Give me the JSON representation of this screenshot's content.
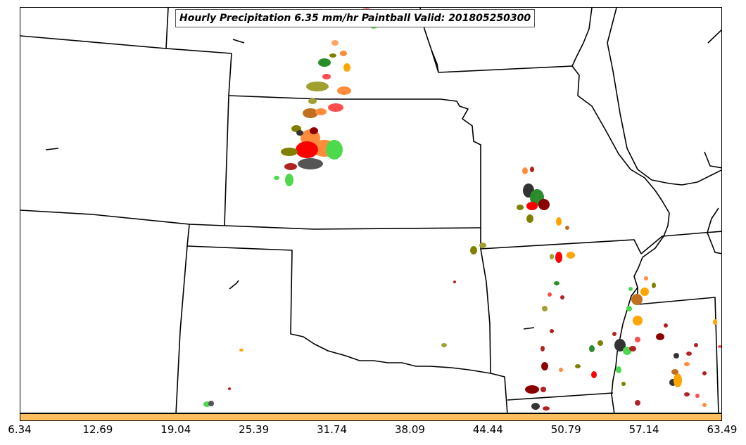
{
  "title": "Hourly Precipitation 6.35 mm/hr Paintball Valid: 201805250300",
  "colorbar": {
    "color": "#ffbf5e",
    "ticks": [
      "6.34",
      "12.69",
      "19.04",
      "25.39",
      "31.74",
      "38.09",
      "44.44",
      "50.79",
      "57.14",
      "63.49"
    ]
  },
  "colors": {
    "borders": "#000000",
    "paint": [
      "#ff0000",
      "#ff4c4c",
      "#ff8c3a",
      "#ffa500",
      "#2a8c2a",
      "#4cd94c",
      "#808000",
      "#a0a030",
      "#8b0000",
      "#b22222",
      "#333333",
      "#555555",
      "#c07020"
    ]
  }
}
